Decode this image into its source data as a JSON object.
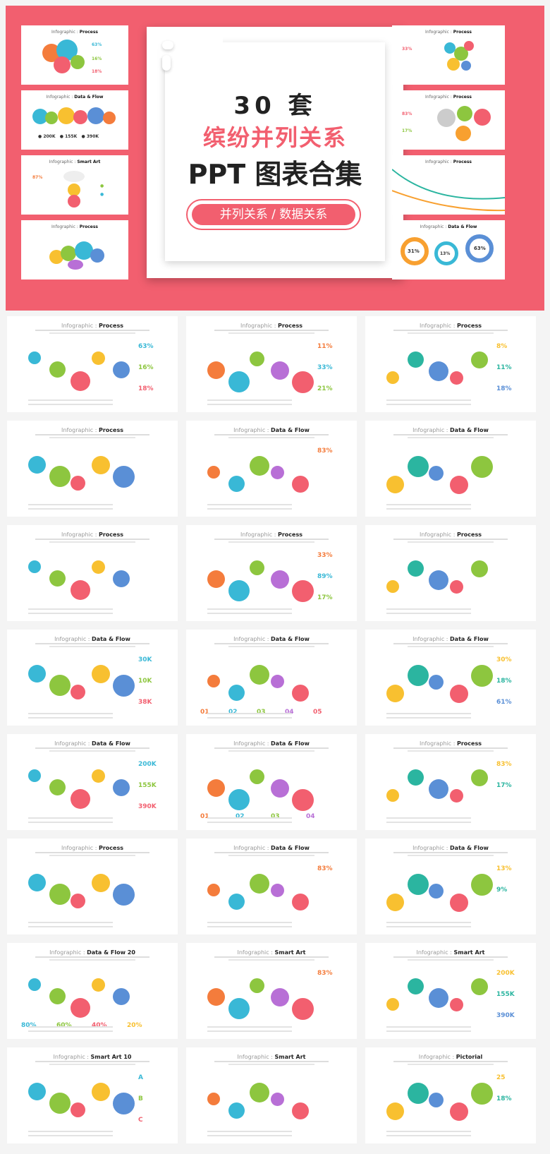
{
  "hero": {
    "count": "30 套",
    "subtitle": "缤纷并列关系",
    "title": "PPT 图表合集",
    "tag": "并列关系 / 数据关系",
    "thumbs_left": [
      {
        "a": "Infographic :",
        "b": "Process"
      },
      {
        "a": "Infographic :",
        "b": "Data & Flow"
      },
      {
        "a": "Infographic :",
        "b": "Smart Art"
      },
      {
        "a": "Infographic :",
        "b": "Process"
      }
    ],
    "thumbs_right": [
      {
        "a": "Infographic :",
        "b": "Process"
      },
      {
        "a": "Infographic :",
        "b": "Process"
      },
      {
        "a": "Infographic :",
        "b": "Process"
      },
      {
        "a": "Infographic :",
        "b": "Data & Flow"
      }
    ]
  },
  "slides": [
    {
      "a": "Infographic :",
      "b": "Process",
      "stats": [
        "63%",
        "16%",
        "18%"
      ]
    },
    {
      "a": "Infographic :",
      "b": "Process",
      "stats": [
        "11%",
        "33%",
        "21%"
      ]
    },
    {
      "a": "Infographic :",
      "b": "Process",
      "stats": [
        "8%",
        "11%",
        "18%"
      ]
    },
    {
      "a": "Infographic :",
      "b": "Process",
      "stats": []
    },
    {
      "a": "Infographic :",
      "b": "Data & Flow",
      "stats": [
        "83%"
      ]
    },
    {
      "a": "Infographic :",
      "b": "Data & Flow",
      "stats": []
    },
    {
      "a": "Infographic :",
      "b": "Process",
      "stats": []
    },
    {
      "a": "Infographic :",
      "b": "Process",
      "stats": [
        "33%",
        "89%",
        "17%"
      ]
    },
    {
      "a": "Infographic :",
      "b": "Process",
      "stats": []
    },
    {
      "a": "Infographic :",
      "b": "Data & Flow",
      "stats": [
        "30K",
        "10K",
        "38K"
      ]
    },
    {
      "a": "Infographic :",
      "b": "Data & Flow",
      "stats": [
        "01",
        "02",
        "03",
        "04",
        "05"
      ]
    },
    {
      "a": "Infographic :",
      "b": "Data & Flow",
      "stats": [
        "30%",
        "18%",
        "61%"
      ]
    },
    {
      "a": "Infographic :",
      "b": "Data & Flow",
      "stats": [
        "200K",
        "155K",
        "390K"
      ]
    },
    {
      "a": "Infographic :",
      "b": "Data & Flow",
      "stats": [
        "01",
        "02",
        "03",
        "04"
      ]
    },
    {
      "a": "Infographic :",
      "b": "Process",
      "stats": [
        "83%",
        "17%"
      ]
    },
    {
      "a": "Infographic :",
      "b": "Process",
      "stats": []
    },
    {
      "a": "Infographic :",
      "b": "Data & Flow",
      "stats": [
        "83%"
      ]
    },
    {
      "a": "Infographic :",
      "b": "Data & Flow",
      "stats": [
        "13%",
        "9%"
      ]
    },
    {
      "a": "Infographic :",
      "b": "Data & Flow 20",
      "stats": [
        "80%",
        "60%",
        "40%",
        "20%"
      ]
    },
    {
      "a": "Infographic :",
      "b": "Smart Art",
      "stats": [
        "83%"
      ]
    },
    {
      "a": "Infographic :",
      "b": "Smart Art",
      "stats": [
        "200K",
        "155K",
        "390K"
      ]
    },
    {
      "a": "Infographic :",
      "b": "Smart Art 10",
      "stats": [
        "A",
        "B",
        "C"
      ]
    },
    {
      "a": "Infographic :",
      "b": "Smart Art",
      "stats": []
    },
    {
      "a": "Infographic :",
      "b": "Pictorial",
      "stats": [
        "25",
        "18%"
      ]
    }
  ]
}
